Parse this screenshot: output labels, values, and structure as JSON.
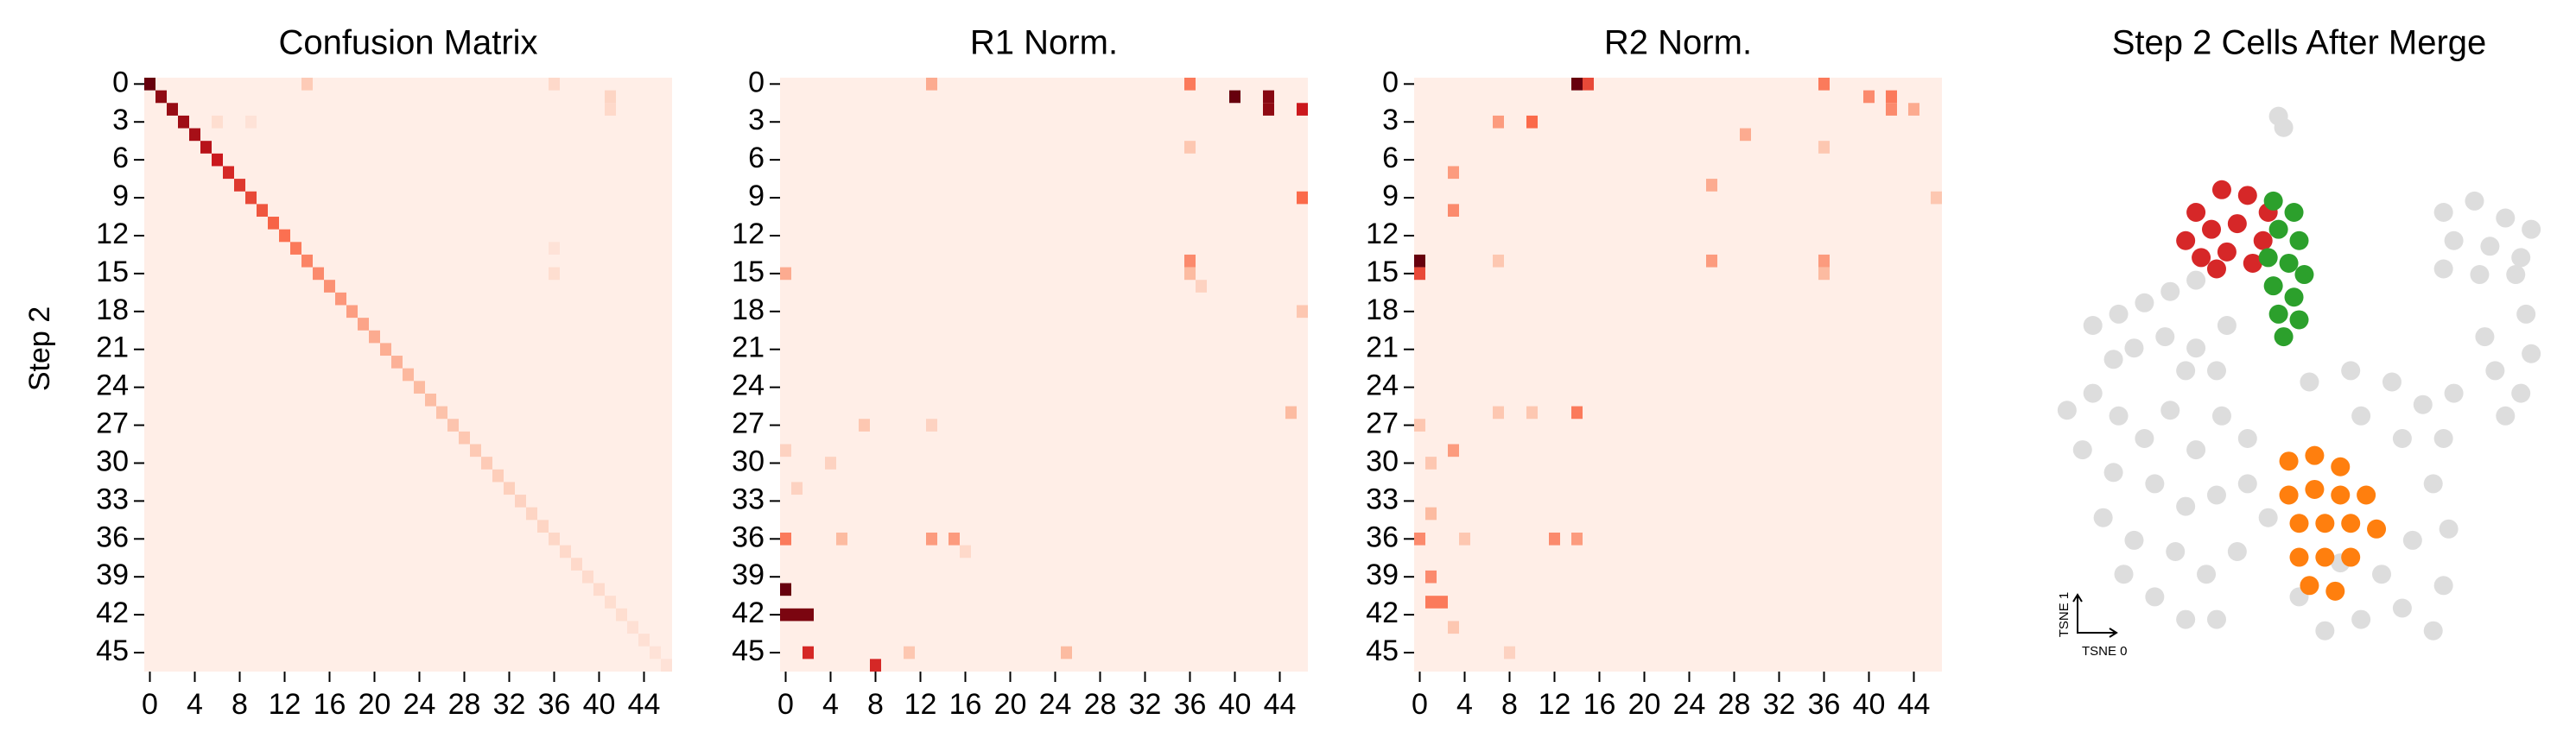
{
  "chart_data": [
    {
      "type": "heatmap",
      "title": "Confusion Matrix",
      "y_label": "Step 2",
      "xlim": [
        -0.5,
        46.5
      ],
      "ylim": [
        -0.5,
        46.5
      ],
      "vlim": [
        0,
        1
      ],
      "xticks": [
        0,
        4,
        8,
        12,
        16,
        20,
        24,
        28,
        32,
        36,
        40,
        44
      ],
      "yticks": [
        0,
        3,
        6,
        9,
        12,
        15,
        18,
        21,
        24,
        27,
        30,
        33,
        36,
        39,
        42,
        45
      ],
      "cells": [
        [
          0,
          0,
          1.0
        ],
        [
          1,
          1,
          0.9
        ],
        [
          2,
          2,
          0.88
        ],
        [
          3,
          3,
          0.86
        ],
        [
          4,
          4,
          0.84
        ],
        [
          5,
          5,
          0.8
        ],
        [
          6,
          6,
          0.75
        ],
        [
          7,
          7,
          0.7
        ],
        [
          8,
          8,
          0.65
        ],
        [
          9,
          9,
          0.6
        ],
        [
          10,
          10,
          0.56
        ],
        [
          11,
          11,
          0.52
        ],
        [
          12,
          12,
          0.48
        ],
        [
          13,
          13,
          0.45
        ],
        [
          14,
          14,
          0.42
        ],
        [
          15,
          15,
          0.4
        ],
        [
          16,
          16,
          0.38
        ],
        [
          17,
          17,
          0.36
        ],
        [
          18,
          18,
          0.34
        ],
        [
          19,
          19,
          0.32
        ],
        [
          20,
          20,
          0.3
        ],
        [
          21,
          21,
          0.29
        ],
        [
          22,
          22,
          0.28
        ],
        [
          23,
          23,
          0.26
        ],
        [
          24,
          24,
          0.25
        ],
        [
          25,
          25,
          0.24
        ],
        [
          26,
          26,
          0.22
        ],
        [
          27,
          27,
          0.21
        ],
        [
          28,
          28,
          0.2
        ],
        [
          29,
          29,
          0.19
        ],
        [
          30,
          30,
          0.18
        ],
        [
          31,
          31,
          0.17
        ],
        [
          32,
          32,
          0.16
        ],
        [
          33,
          33,
          0.15
        ],
        [
          34,
          34,
          0.14
        ],
        [
          35,
          35,
          0.14
        ],
        [
          36,
          36,
          0.13
        ],
        [
          37,
          37,
          0.12
        ],
        [
          38,
          38,
          0.12
        ],
        [
          39,
          39,
          0.11
        ],
        [
          40,
          40,
          0.11
        ],
        [
          41,
          41,
          0.1
        ],
        [
          42,
          42,
          0.1
        ],
        [
          43,
          43,
          0.09
        ],
        [
          44,
          44,
          0.09
        ],
        [
          45,
          45,
          0.08
        ],
        [
          46,
          46,
          0.08
        ],
        [
          0,
          14,
          0.18
        ],
        [
          0,
          36,
          0.12
        ],
        [
          1,
          41,
          0.14
        ],
        [
          2,
          41,
          0.12
        ],
        [
          3,
          6,
          0.1
        ],
        [
          3,
          9,
          0.08
        ],
        [
          15,
          36,
          0.1
        ],
        [
          13,
          36,
          0.08
        ]
      ]
    },
    {
      "type": "heatmap",
      "title": "R1 Norm.",
      "xlim": [
        -0.5,
        46.5
      ],
      "ylim": [
        -0.5,
        46.5
      ],
      "vlim": [
        0,
        1
      ],
      "xticks": [
        0,
        4,
        8,
        12,
        16,
        20,
        24,
        28,
        32,
        36,
        40,
        44
      ],
      "yticks": [
        0,
        3,
        6,
        9,
        12,
        15,
        18,
        21,
        24,
        27,
        30,
        33,
        36,
        39,
        42,
        45
      ],
      "cells": [
        [
          0,
          13,
          0.3
        ],
        [
          0,
          36,
          0.45
        ],
        [
          1,
          40,
          1.0
        ],
        [
          1,
          43,
          0.92
        ],
        [
          2,
          43,
          0.9
        ],
        [
          2,
          46,
          0.75
        ],
        [
          5,
          36,
          0.2
        ],
        [
          9,
          46,
          0.5
        ],
        [
          14,
          36,
          0.4
        ],
        [
          15,
          36,
          0.25
        ],
        [
          15,
          0,
          0.3
        ],
        [
          16,
          37,
          0.15
        ],
        [
          40,
          0,
          1.0
        ],
        [
          42,
          0,
          0.95
        ],
        [
          42,
          1,
          0.95
        ],
        [
          42,
          2,
          0.95
        ],
        [
          45,
          2,
          0.7
        ],
        [
          46,
          8,
          0.7
        ],
        [
          36,
          0,
          0.45
        ],
        [
          36,
          5,
          0.25
        ],
        [
          36,
          13,
          0.35
        ],
        [
          36,
          15,
          0.35
        ],
        [
          27,
          7,
          0.2
        ],
        [
          27,
          13,
          0.15
        ],
        [
          45,
          11,
          0.2
        ],
        [
          45,
          25,
          0.25
        ],
        [
          30,
          4,
          0.15
        ],
        [
          32,
          1,
          0.15
        ],
        [
          29,
          0,
          0.15
        ],
        [
          26,
          45,
          0.25
        ],
        [
          18,
          46,
          0.2
        ],
        [
          37,
          16,
          0.12
        ]
      ]
    },
    {
      "type": "heatmap",
      "title": "R2 Norm.",
      "xlim": [
        -0.5,
        46.5
      ],
      "ylim": [
        -0.5,
        46.5
      ],
      "vlim": [
        0,
        1
      ],
      "xticks": [
        0,
        4,
        8,
        12,
        16,
        20,
        24,
        28,
        32,
        36,
        40,
        44
      ],
      "yticks": [
        0,
        3,
        6,
        9,
        12,
        15,
        18,
        21,
        24,
        27,
        30,
        33,
        36,
        39,
        42,
        45
      ],
      "cells": [
        [
          0,
          14,
          1.0
        ],
        [
          0,
          15,
          0.6
        ],
        [
          0,
          36,
          0.45
        ],
        [
          1,
          40,
          0.4
        ],
        [
          1,
          42,
          0.45
        ],
        [
          2,
          42,
          0.4
        ],
        [
          2,
          44,
          0.3
        ],
        [
          3,
          7,
          0.35
        ],
        [
          3,
          10,
          0.5
        ],
        [
          4,
          29,
          0.3
        ],
        [
          5,
          36,
          0.2
        ],
        [
          7,
          3,
          0.35
        ],
        [
          8,
          26,
          0.3
        ],
        [
          9,
          46,
          0.2
        ],
        [
          10,
          3,
          0.4
        ],
        [
          14,
          0,
          1.0
        ],
        [
          15,
          0,
          0.6
        ],
        [
          14,
          7,
          0.2
        ],
        [
          14,
          26,
          0.35
        ],
        [
          14,
          36,
          0.35
        ],
        [
          15,
          36,
          0.25
        ],
        [
          26,
          14,
          0.45
        ],
        [
          26,
          7,
          0.2
        ],
        [
          26,
          10,
          0.2
        ],
        [
          29,
          3,
          0.35
        ],
        [
          34,
          1,
          0.25
        ],
        [
          36,
          0,
          0.4
        ],
        [
          36,
          4,
          0.2
        ],
        [
          36,
          12,
          0.4
        ],
        [
          36,
          14,
          0.35
        ],
        [
          39,
          1,
          0.4
        ],
        [
          41,
          1,
          0.45
        ],
        [
          41,
          2,
          0.45
        ],
        [
          43,
          3,
          0.2
        ],
        [
          45,
          8,
          0.15
        ],
        [
          27,
          0,
          0.2
        ],
        [
          30,
          1,
          0.2
        ]
      ]
    },
    {
      "type": "scatter",
      "title": "Step 2 Cells After Merge",
      "x_label": "TSNE 0",
      "y_label": "TSNE 1",
      "xlim": [
        0,
        100
      ],
      "ylim": [
        0,
        100
      ],
      "series": [
        {
          "color": "#dddddd",
          "x": [
            46,
            47,
            10,
            15,
            20,
            25,
            30,
            18,
            24,
            30,
            36,
            28,
            34,
            14,
            78,
            84,
            90,
            95,
            80,
            87,
            93,
            78,
            85,
            92,
            88,
            93,
            90,
            95,
            86,
            94,
            5,
            10,
            15,
            20,
            25,
            30,
            35,
            40,
            8,
            14,
            22,
            28,
            34,
            40,
            12,
            18,
            26,
            32,
            38,
            22,
            28,
            34,
            44,
            16,
            52,
            60,
            68,
            74,
            78,
            70,
            62,
            76,
            79,
            72,
            78,
            70,
            62,
            55,
            50,
            66,
            58,
            48,
            76,
            80
          ],
          "y": [
            97,
            95,
            60,
            62,
            64,
            66,
            68,
            56,
            58,
            56,
            60,
            52,
            52,
            54,
            80,
            82,
            79,
            77,
            75,
            74,
            72,
            70,
            69,
            69,
            52,
            48,
            44,
            55,
            58,
            62,
            45,
            48,
            44,
            40,
            45,
            38,
            44,
            40,
            38,
            34,
            32,
            28,
            30,
            32,
            26,
            22,
            20,
            16,
            20,
            12,
            8,
            8,
            26,
            16,
            50,
            52,
            50,
            46,
            40,
            40,
            44,
            32,
            24,
            22,
            14,
            10,
            8,
            6,
            12,
            16,
            18,
            30,
            6,
            48
          ]
        },
        {
          "color": "#ff7f0e",
          "x": [
            48,
            53,
            58,
            48,
            53,
            58,
            63,
            50,
            55,
            60,
            65,
            50,
            55,
            60,
            52,
            57
          ],
          "y": [
            36,
            37,
            35,
            30,
            31,
            30,
            30,
            25,
            25,
            25,
            24,
            19,
            19,
            19,
            14,
            13
          ]
        },
        {
          "color": "#d62728",
          "x": [
            30,
            35,
            40,
            44,
            28,
            33,
            38,
            43,
            31,
            36,
            41,
            34
          ],
          "y": [
            80,
            84,
            83,
            80,
            75,
            77,
            78,
            75,
            72,
            73,
            71,
            70
          ]
        },
        {
          "color": "#2ca02c",
          "x": [
            45,
            49,
            46,
            50,
            44,
            48,
            51,
            45,
            49,
            46,
            50,
            47
          ],
          "y": [
            82,
            80,
            77,
            75,
            72,
            71,
            69,
            67,
            65,
            62,
            61,
            58
          ]
        }
      ]
    }
  ]
}
